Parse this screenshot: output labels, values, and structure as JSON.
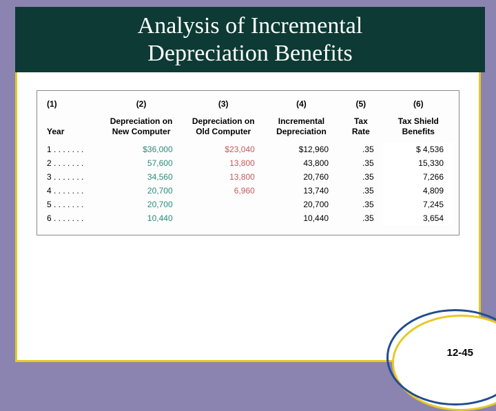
{
  "title": "Analysis of Incremental\nDepreciation Benefits",
  "pageNumber": "12-45",
  "table": {
    "columns": [
      {
        "num": "(1)",
        "label": "Year"
      },
      {
        "num": "(2)",
        "label": "Depreciation on\nNew Computer"
      },
      {
        "num": "(3)",
        "label": "Depreciation on\nOld Computer"
      },
      {
        "num": "(4)",
        "label": "Incremental\nDepreciation"
      },
      {
        "num": "(5)",
        "label": "Tax\nRate"
      },
      {
        "num": "(6)",
        "label": "Tax Shield\nBenefits"
      }
    ],
    "rows": [
      {
        "year": "1 . . . . . . .",
        "newc": "$36,000",
        "oldc": "$23,040",
        "inc": "$12,960",
        "rate": ".35",
        "ben": "$  4,536"
      },
      {
        "year": "2 . . . . . . .",
        "newc": "57,600",
        "oldc": "13,800",
        "inc": "43,800",
        "rate": ".35",
        "ben": "15,330"
      },
      {
        "year": "3 . . . . . . .",
        "newc": "34,560",
        "oldc": "13,800",
        "inc": "20,760",
        "rate": ".35",
        "ben": "7,266"
      },
      {
        "year": "4 . . . . . . .",
        "newc": "20,700",
        "oldc": "6,960",
        "inc": "13,740",
        "rate": ".35",
        "ben": "4,809"
      },
      {
        "year": "5 . . . . . . .",
        "newc": "20,700",
        "oldc": "",
        "inc": "20,700",
        "rate": ".35",
        "ben": "7,245"
      },
      {
        "year": "6 . . . . . . .",
        "newc": "10,440",
        "oldc": "",
        "inc": "10,440",
        "rate": ".35",
        "ben": "3,654"
      }
    ],
    "colWidthsPct": [
      14,
      20,
      20,
      18,
      11,
      17
    ],
    "colors": {
      "newComputer": "#2a8a7a",
      "oldComputer": "#c55a5a",
      "default": "#000000",
      "titleBg": "#0d3a34",
      "frameBorder": "#e6c923",
      "pageBg": "#8b84b0",
      "arcBlue": "#234c8f"
    }
  }
}
